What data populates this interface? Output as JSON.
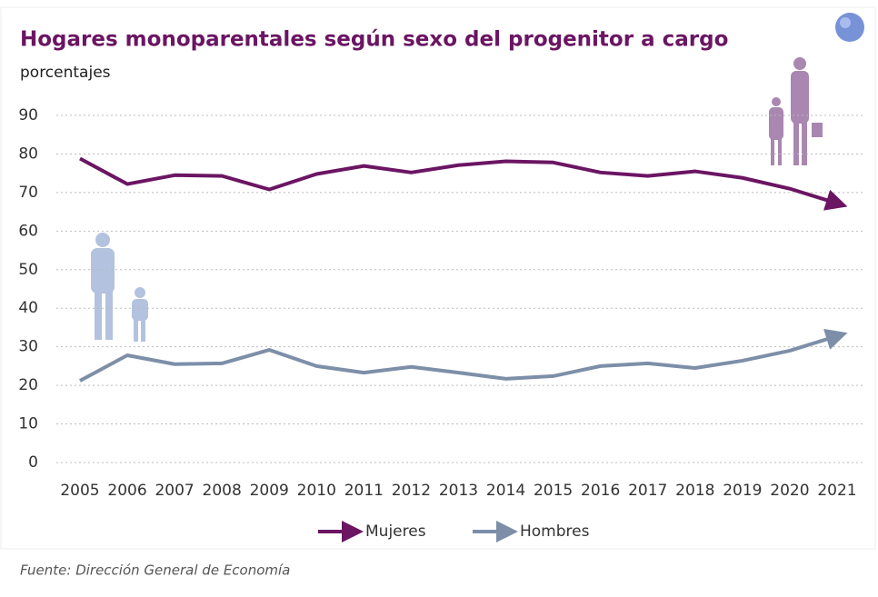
{
  "chart_data": {
    "type": "line",
    "title": "Hogares monoparentales según sexo del progenitor a cargo",
    "subtitle": "porcentajes",
    "source": "Fuente:  Dirección General de Economía",
    "categories": [
      "2005",
      "2006",
      "2007",
      "2008",
      "2009",
      "2010",
      "2011",
      "2012",
      "2013",
      "2014",
      "2015",
      "2016",
      "2017",
      "2018",
      "2019",
      "2020",
      "2021"
    ],
    "series": [
      {
        "name": "Mujeres",
        "color": "#6b1563",
        "values": [
          78.8,
          72.2,
          74.5,
          74.3,
          70.8,
          74.8,
          76.9,
          75.2,
          77.1,
          78.1,
          77.8,
          75.2,
          74.3,
          75.5,
          73.8,
          71.0,
          67.2
        ]
      },
      {
        "name": "Hombres",
        "color": "#7d8fa8",
        "values": [
          21.2,
          27.8,
          25.5,
          25.7,
          29.2,
          25.0,
          23.3,
          24.8,
          23.3,
          21.7,
          22.4,
          25.0,
          25.7,
          24.5,
          26.4,
          29.0,
          32.8
        ]
      }
    ],
    "ylim": [
      0,
      90
    ],
    "yticks": [
      0,
      10,
      20,
      30,
      40,
      50,
      60,
      70,
      80,
      90
    ],
    "grid": true,
    "legend": "bottom"
  }
}
